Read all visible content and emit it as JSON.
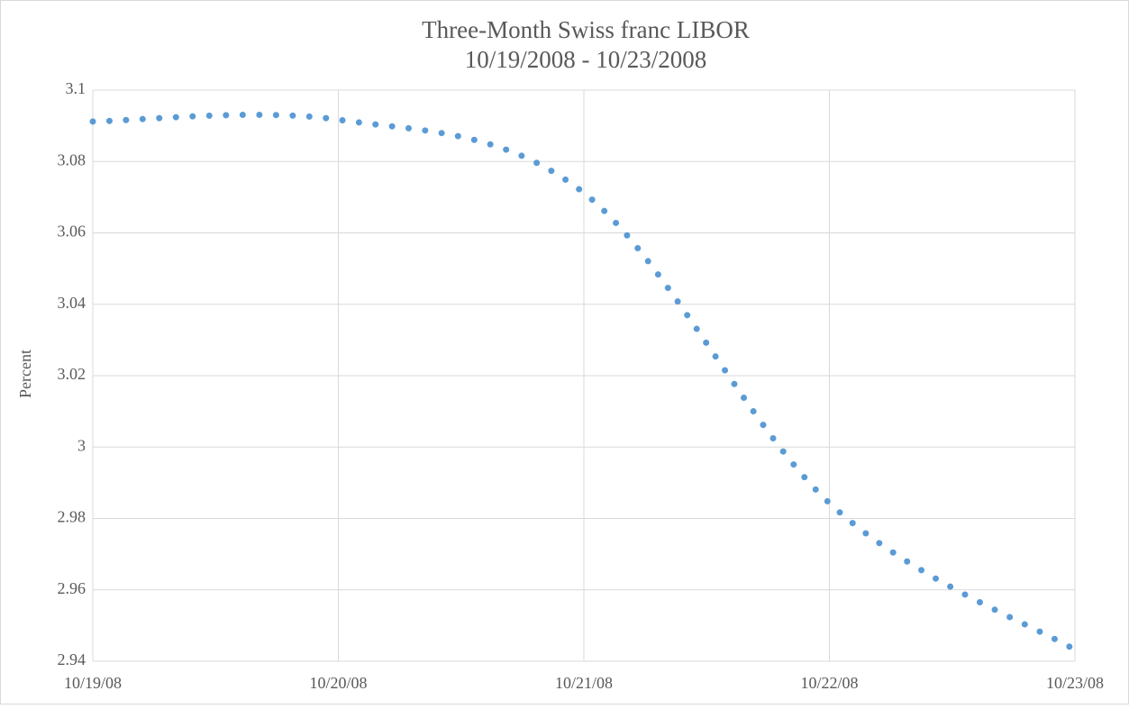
{
  "chart_data": {
    "type": "line",
    "title": "Three-Month Swiss franc LIBOR",
    "subtitle": "10/19/2008 - 10/23/2008",
    "y_label": "Percent",
    "categories": [
      "10/19/08",
      "10/20/08",
      "10/21/08",
      "10/22/08",
      "10/23/08"
    ],
    "series": [
      {
        "name": "LIBOR",
        "color": "#5b9bd5",
        "values": [
          3.0912,
          3.0917,
          3.0712,
          2.9843,
          2.9432
        ]
      }
    ],
    "ylim": [
      2.94,
      3.1
    ],
    "yticks": [
      2.94,
      2.96,
      2.98,
      3,
      3.02,
      3.04,
      3.06,
      3.08,
      3.1
    ],
    "grid": true,
    "line_style": "dotted"
  }
}
